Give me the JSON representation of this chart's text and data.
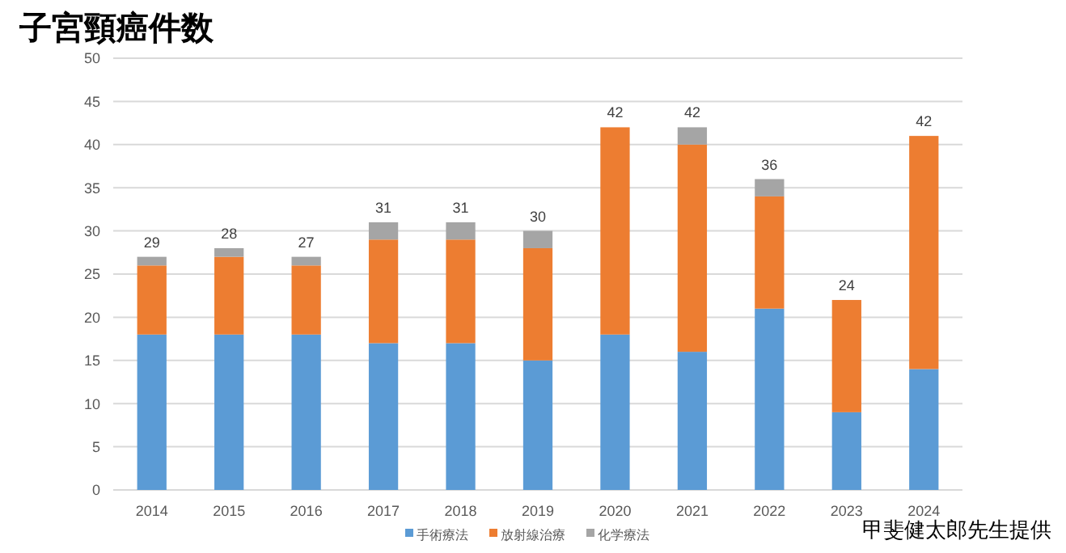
{
  "chart_data": {
    "type": "bar",
    "title": "子宮頸癌件数",
    "stacked": true,
    "categories": [
      "2014",
      "2015",
      "2016",
      "2017",
      "2018",
      "2019",
      "2020",
      "2021",
      "2022",
      "2023",
      "2024"
    ],
    "series": [
      {
        "name": "手術療法",
        "color": "#5b9bd5",
        "values": [
          18,
          18,
          18,
          17,
          17,
          15,
          18,
          16,
          21,
          9,
          14
        ]
      },
      {
        "name": "放射線治療",
        "color": "#ed7d31",
        "values": [
          8,
          9,
          8,
          12,
          12,
          13,
          24,
          24,
          13,
          13,
          27
        ]
      },
      {
        "name": "化学療法",
        "color": "#a5a5a5",
        "values": [
          1,
          1,
          1,
          2,
          2,
          2,
          0,
          2,
          2,
          0,
          0
        ]
      }
    ],
    "totals": [
      "29",
      "28",
      "27",
      "31",
      "31",
      "30",
      "42",
      "42",
      "36",
      "24",
      "42"
    ],
    "ylim": [
      0,
      50
    ],
    "yticks": [
      0,
      5,
      10,
      15,
      20,
      25,
      30,
      35,
      40,
      45,
      50
    ],
    "grid": "y",
    "legend": "bottom",
    "annotations": [
      "甲斐健太郎先生提供"
    ]
  }
}
